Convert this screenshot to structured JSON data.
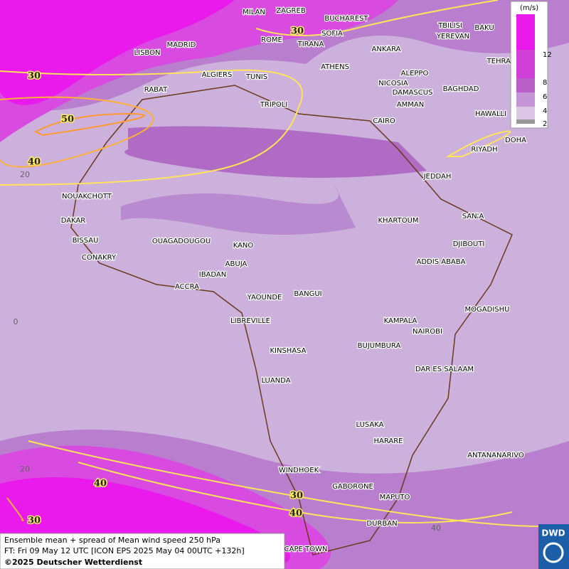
{
  "map": {
    "cities": [
      "MILAN",
      "ZAGREB",
      "BUCHAREST",
      "TBILISI",
      "BAKU",
      "MADRID",
      "ROME",
      "SOFIA",
      "YEREVAN",
      "LISBON",
      "TIRANA",
      "ANKARA",
      "TEHRAN",
      "ALGIERS",
      "TUNIS",
      "ATHENS",
      "ALEPPO",
      "RABAT",
      "NICOSIA",
      "BAGHDAD",
      "DAMASCUS",
      "TRIPOLI",
      "AMMAN",
      "HAWALLI",
      "CAIRO",
      "DOHA",
      "RIYADH",
      "JEDDAH",
      "NOUAKCHOTT",
      "KHARTOUM",
      "SAN'A",
      "DAKAR",
      "BISSAU",
      "DJIBOUTI",
      "OUAGADOUGOU",
      "KANO",
      "CONAKRY",
      "ABUJA",
      "ADDIS ABABA",
      "IBADAN",
      "ACCRA",
      "YAOUNDE",
      "BANGUI",
      "MOGADISHU",
      "LIBREVILLE",
      "KAMPALA",
      "NAIROBI",
      "KINSHASA",
      "BUJUMBURA",
      "DAR ES SALAAM",
      "LUANDA",
      "LUSAKA",
      "HARARE",
      "ANTANANARIVO",
      "WINDHOEK",
      "GABORONE",
      "MAPUTO",
      "DURBAN",
      "CAPE TOWN"
    ],
    "contour_labels": [
      "30",
      "50",
      "40",
      "30",
      "40",
      "30",
      "30",
      "40"
    ],
    "grid_labels": [
      "20",
      "0",
      "20",
      "40"
    ],
    "legend": {
      "unit": "(m/s)",
      "ticks": [
        "12",
        "8",
        "6",
        "4",
        "2"
      ]
    },
    "footer": {
      "line1": "Ensemble mean + spread of Mean wind speed 250 hPa",
      "line2": "FT: Fri 09 May 12 UTC [ICON EPS 2025 May 04 00UTC +132h]",
      "line3": "©2025 Deutscher Wetterdienst"
    },
    "logo": "DWD"
  }
}
